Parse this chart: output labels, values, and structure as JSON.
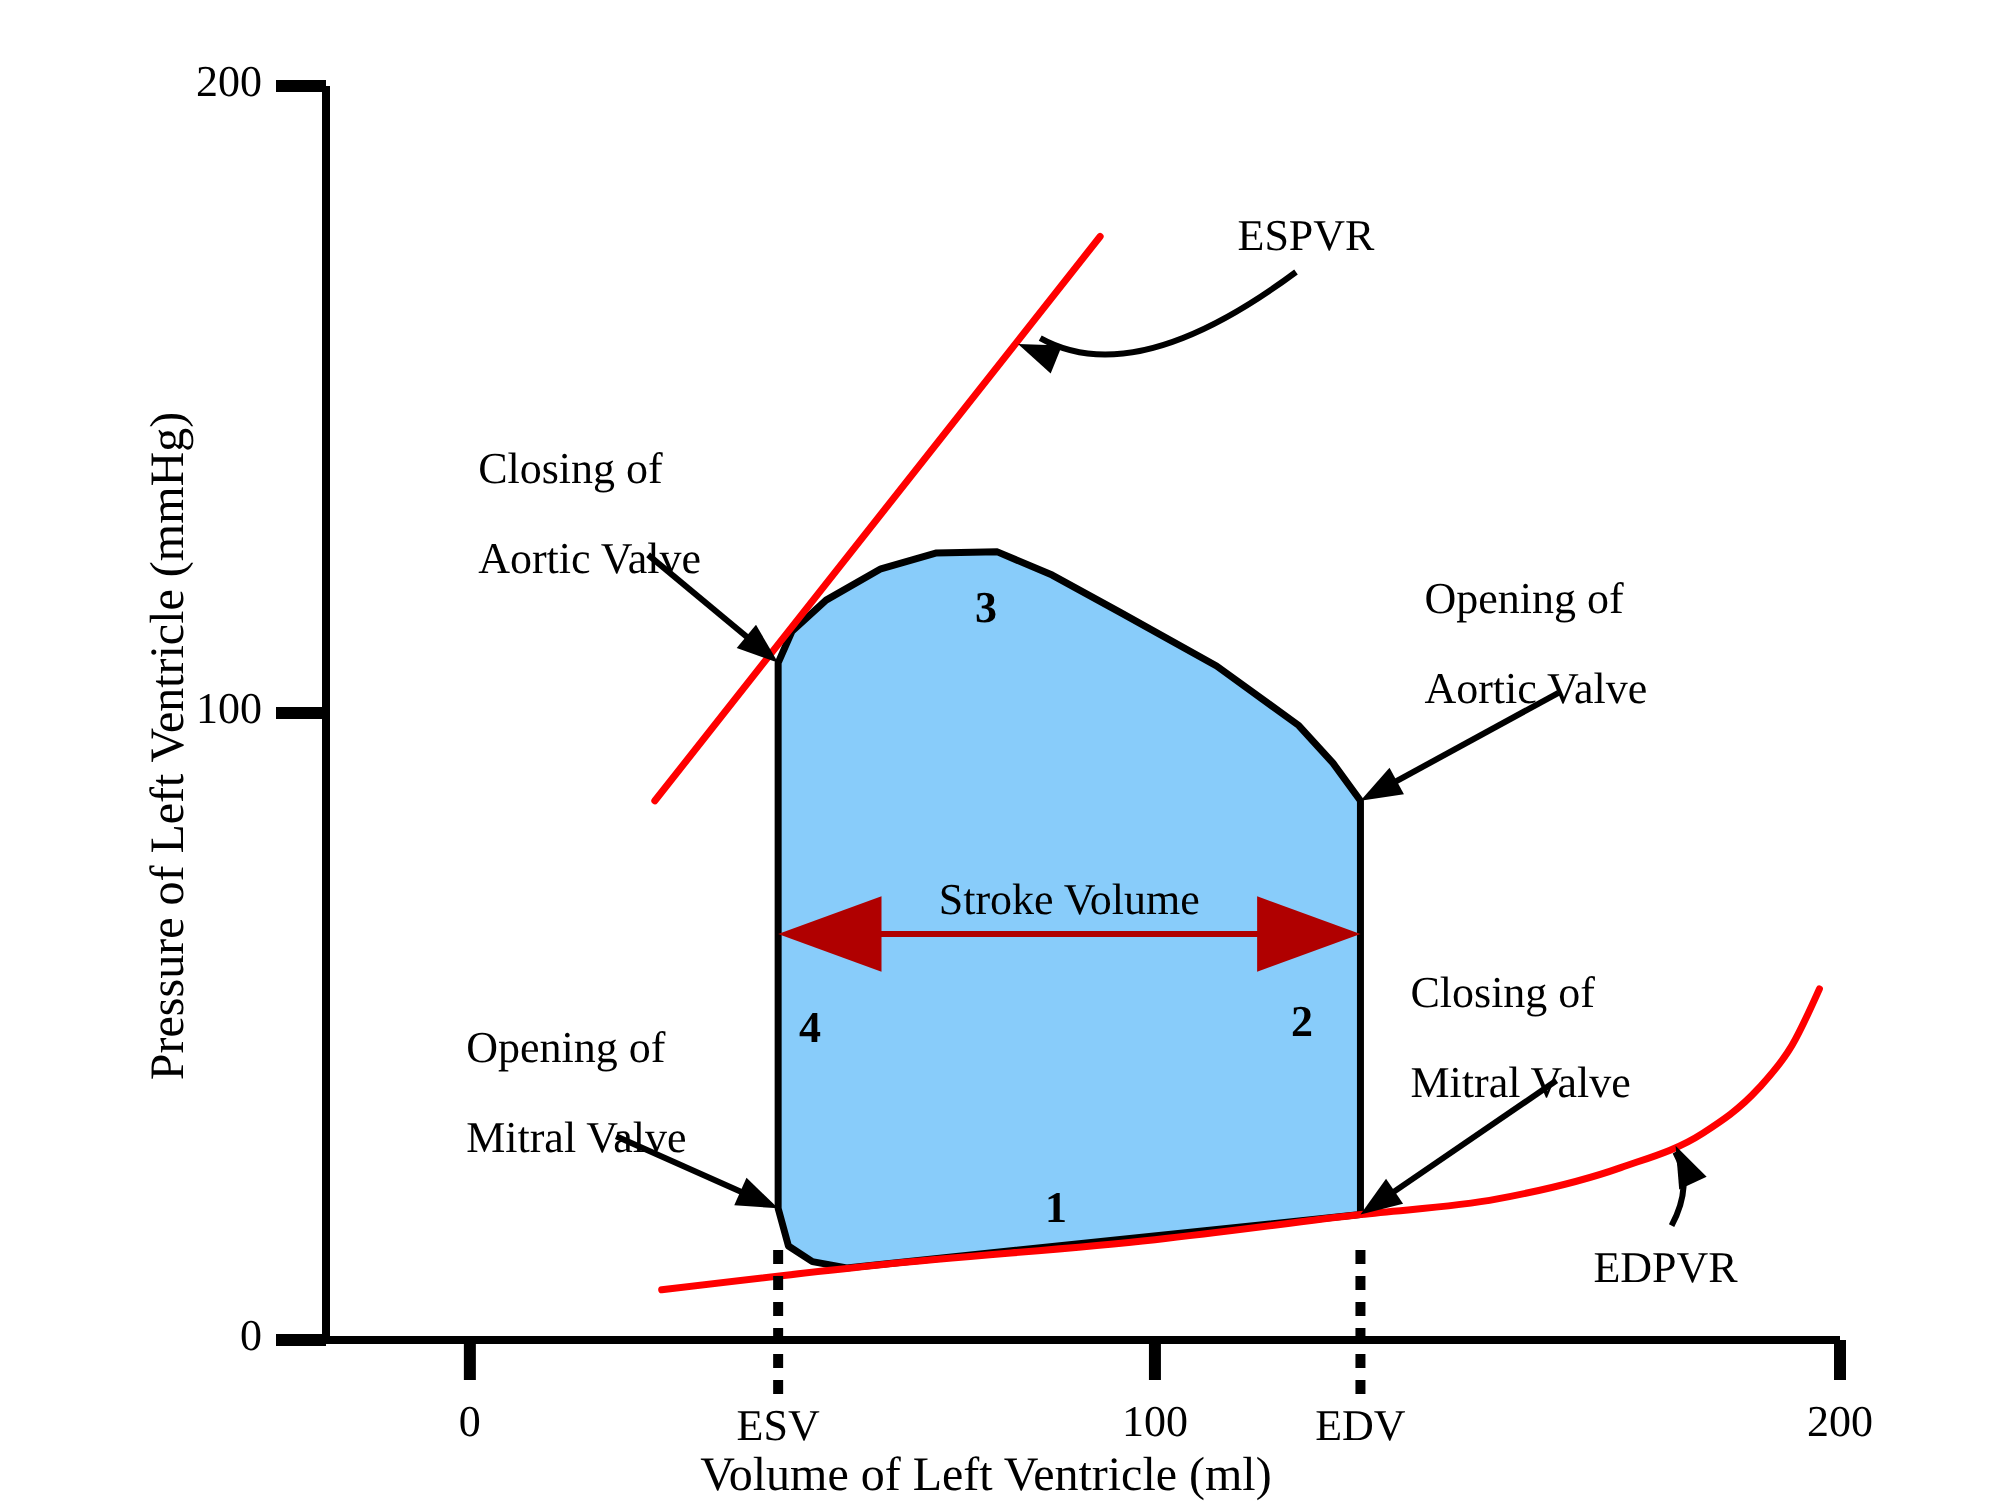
{
  "chart_data": {
    "type": "line",
    "xlabel": "Volume of Left Ventricle (ml)",
    "ylabel": "Pressure of Left Ventricle (mmHg)",
    "xlim": [
      -21,
      200
    ],
    "ylim": [
      0,
      200
    ],
    "xticks": [
      0,
      100,
      200
    ],
    "yticks": [
      0,
      100,
      200
    ],
    "grid": false,
    "marker": "none",
    "series": [
      {
        "type": "area",
        "color": "#88ccfa",
        "x": [
          45,
          46.5,
          50,
          55,
          130,
          130,
          126,
          121,
          109,
          95,
          85,
          77,
          68,
          60,
          52,
          47,
          45
        ],
        "values": [
          21,
          15,
          12.5,
          11.5,
          20,
          86,
          92,
          98,
          107.5,
          116,
          122,
          125.7,
          125.5,
          123,
          118,
          113,
          108
        ]
      },
      {
        "type": "line",
        "color": "#ff0000",
        "x": [
          27,
          92
        ],
        "values": [
          86,
          176
        ]
      },
      {
        "color": "#ff0000",
        "x": [
          28,
          60,
          100,
          130,
          150,
          168,
          180,
          188,
          193,
          197
        ],
        "values": [
          8,
          12,
          16,
          20,
          22.5,
          27.5,
          33,
          40,
          47,
          56
        ]
      }
    ],
    "ref_lines": [
      {
        "axis": "x",
        "value": 45,
        "label": "ESV",
        "line_style": "dashed"
      },
      {
        "axis": "x",
        "value": 130,
        "label": "EDV",
        "line_style": "dashed"
      }
    ],
    "annotations": [
      "ESPVR",
      {
        "text": "Closing of Aortic Valve",
        "x": 45,
        "y": 108
      },
      {
        "text": "Opening of Aortic Valve",
        "x": 130,
        "y": 86
      },
      {
        "text": "Closing of Mitral Valve",
        "x": 130,
        "y": 20
      },
      {
        "text": "Opening of Mitral Valve",
        "x": 45,
        "y": 21
      },
      {
        "text": "EDPVR",
        "x": 176,
        "y": 31
      },
      "Stroke Volume",
      "1",
      "2",
      "3",
      "4"
    ]
  }
}
